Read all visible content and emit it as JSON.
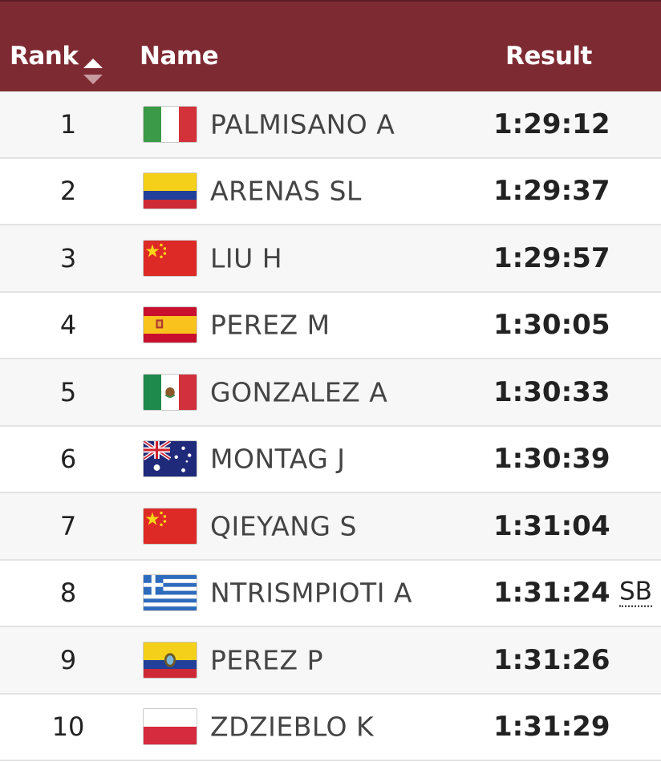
{
  "header": {
    "rank_label": "Rank",
    "name_label": "Name",
    "result_label": "Result",
    "sort_icon": "sort-ascending-icon",
    "background_color": "#7e2a33"
  },
  "rows": [
    {
      "rank": "1",
      "name": "PALMISANO A",
      "result": "1:29:12",
      "flag_icon": "italy-flag-icon",
      "note": ""
    },
    {
      "rank": "2",
      "name": "ARENAS SL",
      "result": "1:29:37",
      "flag_icon": "colombia-flag-icon",
      "note": ""
    },
    {
      "rank": "3",
      "name": "LIU H",
      "result": "1:29:57",
      "flag_icon": "china-flag-icon",
      "note": ""
    },
    {
      "rank": "4",
      "name": "PEREZ M",
      "result": "1:30:05",
      "flag_icon": "spain-flag-icon",
      "note": ""
    },
    {
      "rank": "5",
      "name": "GONZALEZ A",
      "result": "1:30:33",
      "flag_icon": "mexico-flag-icon",
      "note": ""
    },
    {
      "rank": "6",
      "name": "MONTAG J",
      "result": "1:30:39",
      "flag_icon": "australia-flag-icon",
      "note": ""
    },
    {
      "rank": "7",
      "name": "QIEYANG S",
      "result": "1:31:04",
      "flag_icon": "china-flag-icon",
      "note": ""
    },
    {
      "rank": "8",
      "name": "NTRISMPIOTI A",
      "result": "1:31:24",
      "flag_icon": "greece-flag-icon",
      "note": "SB"
    },
    {
      "rank": "9",
      "name": "PEREZ P",
      "result": "1:31:26",
      "flag_icon": "ecuador-flag-icon",
      "note": ""
    },
    {
      "rank": "10",
      "name": "ZDZIEBLO K",
      "result": "1:31:29",
      "flag_icon": "poland-flag-icon",
      "note": ""
    }
  ]
}
